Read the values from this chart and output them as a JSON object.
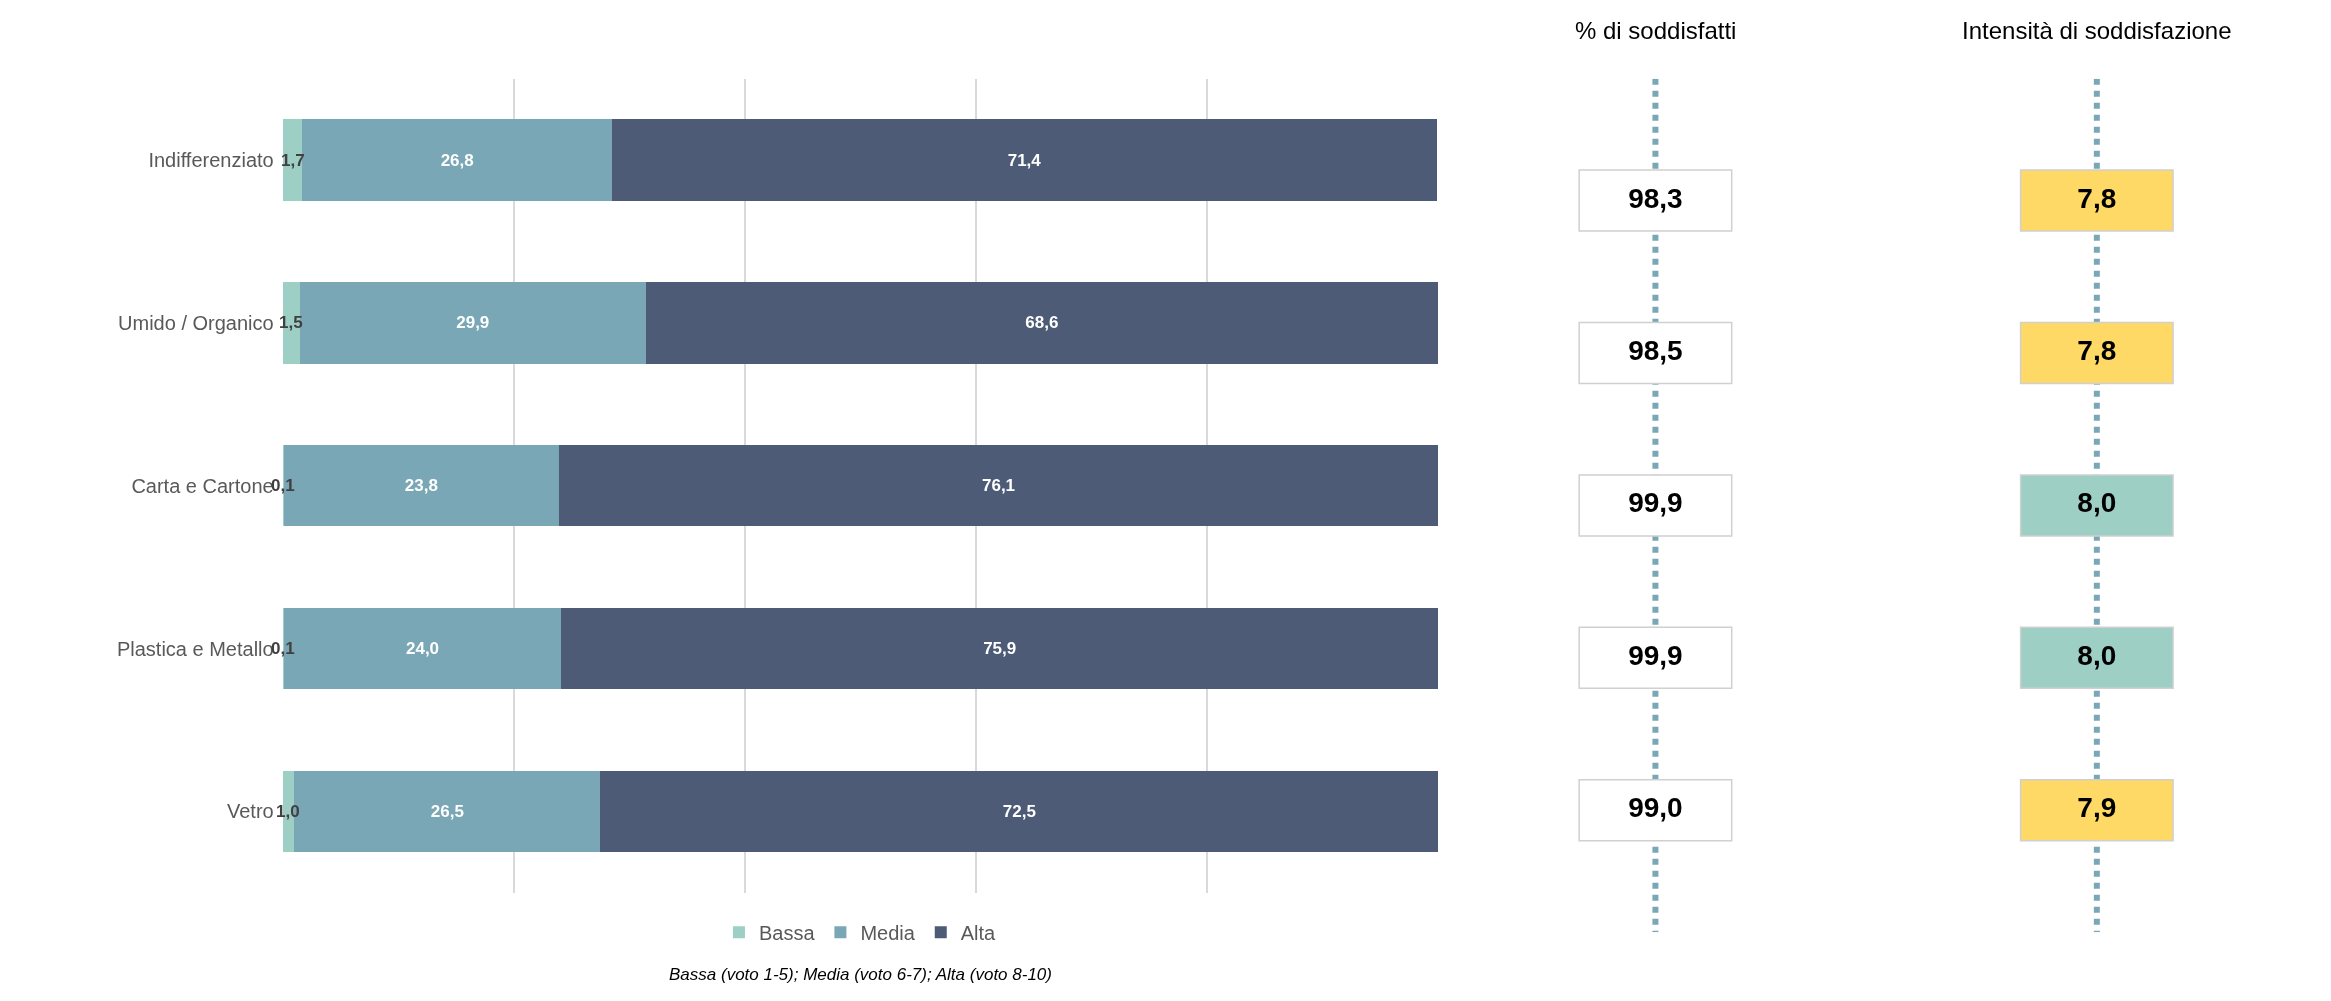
{
  "chart_data": [
    {
      "type": "bar",
      "orientation": "horizontal",
      "stacked": true,
      "categories": [
        "Indifferenziato",
        "Umido / Organico",
        "Carta e Cartone",
        "Plastica e Metallo",
        "Vetro"
      ],
      "series": [
        {
          "name": "Bassa",
          "color": "#9dcfc5",
          "values": [
            1.7,
            1.5,
            0.1,
            0.1,
            1.0
          ],
          "value_labels": [
            "1,7",
            "1,5",
            "0,1",
            "0,1",
            "1,0"
          ]
        },
        {
          "name": "Media",
          "color": "#79a7b5",
          "values": [
            26.8,
            29.9,
            23.8,
            24.0,
            26.5
          ],
          "value_labels": [
            "26,8",
            "29,9",
            "23,8",
            "24,0",
            "26,5"
          ]
        },
        {
          "name": "Alta",
          "color": "#4d5b77",
          "values": [
            71.4,
            68.6,
            76.1,
            75.9,
            72.5
          ],
          "value_labels": [
            "71,4",
            "68,6",
            "76,1",
            "75,9",
            "72,5"
          ]
        }
      ],
      "xlim": [
        0,
        100
      ],
      "xticks": [
        {
          "value": 20,
          "label": null
        },
        {
          "value": 40,
          "label": null
        },
        {
          "value": 60,
          "label": null
        },
        {
          "value": 80,
          "label": null
        }
      ],
      "tick_labels": "y",
      "grid": "x",
      "legend": "bottom",
      "annotations": [
        "Bassa (voto 1-5); Media (voto 6-7); Alta (voto 8-10)"
      ]
    },
    {
      "type": "other",
      "title": "% di soddisfatti",
      "value_labels": [
        "98,3",
        "98,5",
        "99,9",
        "99,9",
        "99,0"
      ],
      "color": "#ffffff"
    },
    {
      "type": "other",
      "title": "Intensità di soddisfazione",
      "value_labels": [
        "7,8",
        "7,8",
        "8,0",
        "8,0",
        "7,9"
      ],
      "colors": [
        "#ffd966",
        "#ffd966",
        "#9dcfc5",
        "#9dcfc5",
        "#ffd966"
      ]
    }
  ]
}
